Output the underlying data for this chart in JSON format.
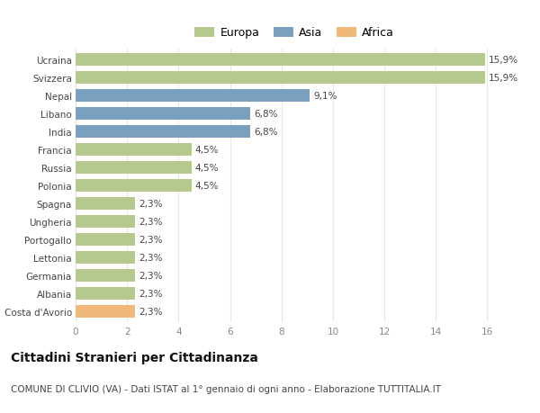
{
  "countries": [
    "Ucraina",
    "Svizzera",
    "Nepal",
    "Libano",
    "India",
    "Francia",
    "Russia",
    "Polonia",
    "Spagna",
    "Ungheria",
    "Portogallo",
    "Lettonia",
    "Germania",
    "Albania",
    "Costa d'Avorio"
  ],
  "values": [
    15.9,
    15.9,
    9.1,
    6.8,
    6.8,
    4.5,
    4.5,
    4.5,
    2.3,
    2.3,
    2.3,
    2.3,
    2.3,
    2.3,
    2.3
  ],
  "labels": [
    "15,9%",
    "15,9%",
    "9,1%",
    "6,8%",
    "6,8%",
    "4,5%",
    "4,5%",
    "4,5%",
    "2,3%",
    "2,3%",
    "2,3%",
    "2,3%",
    "2,3%",
    "2,3%",
    "2,3%"
  ],
  "continents": [
    "Europa",
    "Europa",
    "Asia",
    "Asia",
    "Asia",
    "Europa",
    "Europa",
    "Europa",
    "Europa",
    "Europa",
    "Europa",
    "Europa",
    "Europa",
    "Europa",
    "Africa"
  ],
  "colors": {
    "Europa": "#b5c98e",
    "Asia": "#7b9fbe",
    "Africa": "#f0b87a"
  },
  "legend": [
    {
      "label": "Europa",
      "color": "#b5c98e"
    },
    {
      "label": "Asia",
      "color": "#7b9fbe"
    },
    {
      "label": "Africa",
      "color": "#f0b87a"
    }
  ],
  "xlim": [
    0,
    17
  ],
  "xticks": [
    0,
    2,
    4,
    6,
    8,
    10,
    12,
    14,
    16
  ],
  "title": "Cittadini Stranieri per Cittadinanza",
  "subtitle": "COMUNE DI CLIVIO (VA) - Dati ISTAT al 1° gennaio di ogni anno - Elaborazione TUTTITALIA.IT",
  "background_color": "#ffffff",
  "grid_color": "#e8e8e8",
  "bar_height": 0.7,
  "title_fontsize": 10,
  "subtitle_fontsize": 7.5,
  "label_fontsize": 7.5,
  "tick_fontsize": 7.5,
  "legend_fontsize": 9
}
